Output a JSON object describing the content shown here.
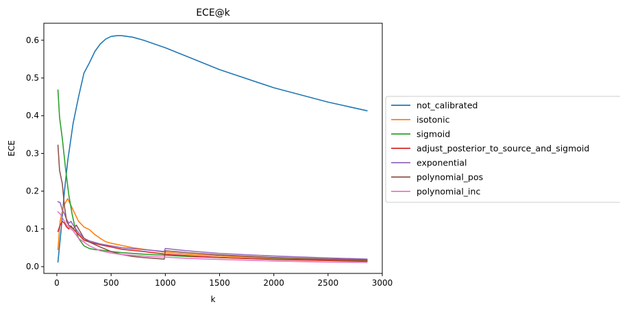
{
  "chart_data": {
    "type": "line",
    "title": "ECE@k",
    "xlabel": "k",
    "ylabel": "ECE",
    "xlim": [
      -120,
      3000
    ],
    "ylim": [
      -0.018,
      0.645
    ],
    "xticks": [
      0,
      500,
      1000,
      1500,
      2000,
      2500,
      3000
    ],
    "yticks": [
      0.0,
      0.1,
      0.2,
      0.3,
      0.4,
      0.5,
      0.6
    ],
    "xtick_labels": [
      "0",
      "500",
      "1000",
      "1500",
      "2000",
      "2500",
      "3000"
    ],
    "ytick_labels": [
      "0.0",
      "0.1",
      "0.2",
      "0.3",
      "0.4",
      "0.5",
      "0.6"
    ],
    "grid": false,
    "legend_position": "outside-right",
    "series": [
      {
        "name": "not_calibrated",
        "color": "#1f77b4",
        "x": [
          10,
          40,
          70,
          100,
          150,
          200,
          250,
          300,
          350,
          400,
          450,
          500,
          550,
          600,
          700,
          800,
          1000,
          1200,
          1500,
          2000,
          2500,
          2860
        ],
        "y": [
          0.012,
          0.1,
          0.2,
          0.28,
          0.38,
          0.45,
          0.513,
          0.54,
          0.57,
          0.59,
          0.603,
          0.61,
          0.612,
          0.612,
          0.608,
          0.6,
          0.58,
          0.557,
          0.522,
          0.474,
          0.436,
          0.413
        ]
      },
      {
        "name": "isotonic",
        "color": "#ff7f0e",
        "x": [
          10,
          30,
          60,
          100,
          150,
          200,
          250,
          300,
          350,
          400,
          450,
          500,
          600,
          700,
          800,
          1000,
          1200,
          1500,
          2000,
          2500,
          2860
        ],
        "y": [
          0.045,
          0.12,
          0.16,
          0.18,
          0.15,
          0.12,
          0.105,
          0.098,
          0.085,
          0.075,
          0.066,
          0.062,
          0.056,
          0.05,
          0.046,
          0.038,
          0.033,
          0.028,
          0.023,
          0.019,
          0.017
        ]
      },
      {
        "name": "sigmoid",
        "color": "#2ca02c",
        "x": [
          10,
          25,
          50,
          80,
          110,
          140,
          170,
          200,
          250,
          300,
          350,
          400,
          500,
          600,
          800,
          1000,
          1200,
          1500,
          2000,
          2500,
          2860
        ],
        "y": [
          0.468,
          0.395,
          0.34,
          0.26,
          0.19,
          0.14,
          0.1,
          0.075,
          0.055,
          0.048,
          0.045,
          0.044,
          0.04,
          0.037,
          0.033,
          0.03,
          0.027,
          0.024,
          0.02,
          0.017,
          0.015
        ]
      },
      {
        "name": "adjust_posterior_to_source_and_sigmoid",
        "color": "#d62728",
        "x": [
          10,
          30,
          50,
          70,
          90,
          110,
          130,
          150,
          200,
          250,
          300,
          400,
          500,
          600,
          800,
          1000,
          1200,
          1500,
          2000,
          2500,
          2860
        ],
        "y": [
          0.093,
          0.11,
          0.12,
          0.115,
          0.105,
          0.1,
          0.108,
          0.1,
          0.085,
          0.07,
          0.065,
          0.058,
          0.052,
          0.046,
          0.04,
          0.033,
          0.029,
          0.024,
          0.019,
          0.016,
          0.014
        ]
      },
      {
        "name": "exponential",
        "color": "#9467bd",
        "x": [
          10,
          30,
          50,
          70,
          90,
          110,
          130,
          150,
          200,
          250,
          300,
          400,
          500,
          600,
          800,
          990,
          1000,
          1200,
          1500,
          2000,
          2500,
          2860
        ],
        "y": [
          0.172,
          0.17,
          0.15,
          0.14,
          0.125,
          0.115,
          0.12,
          0.11,
          0.09,
          0.075,
          0.068,
          0.06,
          0.055,
          0.05,
          0.045,
          0.04,
          0.048,
          0.042,
          0.035,
          0.028,
          0.023,
          0.02
        ]
      },
      {
        "name": "polynomial_pos",
        "color": "#8c564b",
        "x": [
          10,
          25,
          50,
          70,
          90,
          110,
          130,
          150,
          180,
          210,
          250,
          300,
          400,
          500,
          600,
          700,
          800,
          990,
          1000,
          1200,
          1500,
          2000,
          2500,
          2860
        ],
        "y": [
          0.322,
          0.255,
          0.22,
          0.16,
          0.12,
          0.11,
          0.105,
          0.1,
          0.11,
          0.095,
          0.075,
          0.065,
          0.052,
          0.04,
          0.032,
          0.027,
          0.024,
          0.02,
          0.042,
          0.037,
          0.031,
          0.024,
          0.02,
          0.018
        ]
      },
      {
        "name": "polynomial_inc",
        "color": "#e377c2",
        "x": [
          10,
          30,
          50,
          70,
          90,
          110,
          130,
          150,
          200,
          250,
          300,
          400,
          500,
          600,
          800,
          1000,
          1200,
          1500,
          2000,
          2500,
          2860
        ],
        "y": [
          0.145,
          0.14,
          0.13,
          0.12,
          0.11,
          0.105,
          0.1,
          0.095,
          0.075,
          0.065,
          0.055,
          0.042,
          0.036,
          0.032,
          0.028,
          0.025,
          0.022,
          0.019,
          0.015,
          0.012,
          0.011
        ]
      }
    ]
  }
}
